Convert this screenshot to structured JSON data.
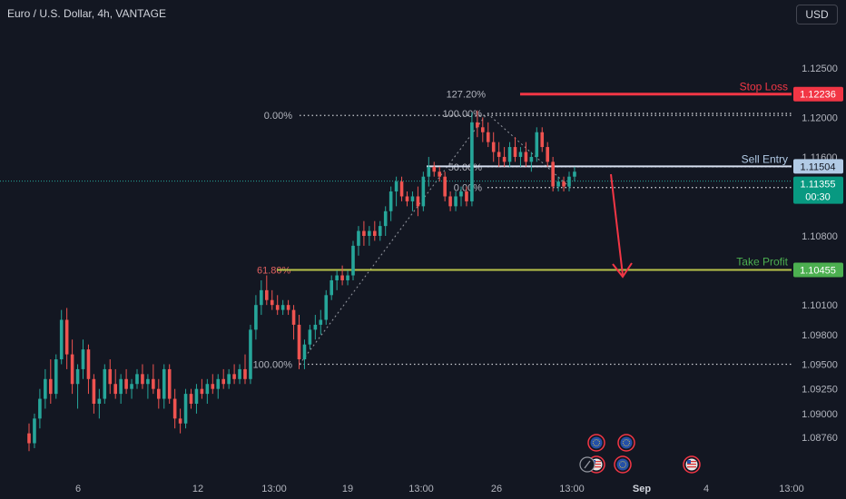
{
  "header": {
    "title": "Euro / U.S. Dollar, 4h, VANTAGE",
    "currency_label": "USD"
  },
  "colors": {
    "background": "#131722",
    "up": "#26a69a",
    "down": "#ef5350",
    "stop": "#f23645",
    "take_profit": "#4caf50",
    "entry_label_bg": "#b2cbe6",
    "current_price_bg": "#089981",
    "fib_line": "#9598a1"
  },
  "chart_data": {
    "type": "candlestick",
    "symbol": "EURUSD",
    "timeframe": "4h",
    "y_axis": {
      "labels": [
        "1.12500",
        "1.12000",
        "1.11600",
        "1.10800",
        "1.10100",
        "1.09800",
        "1.09500",
        "1.09250",
        "1.09000",
        "1.08760"
      ],
      "ylim": [
        1.0865,
        1.1285
      ]
    },
    "x_axis": {
      "labels": [
        "6",
        "12",
        "13:00",
        "19",
        "13:00",
        "26",
        "13:00",
        "Sep",
        "4",
        "13:00"
      ],
      "bold_label": "Sep"
    },
    "price_tags": [
      {
        "name": "stop-loss-tag",
        "value": "1.12236",
        "kind": "stop"
      },
      {
        "name": "sell-entry-tag",
        "value": "1.11504",
        "kind": "entry"
      },
      {
        "name": "current-price-tag",
        "value": "1.11355",
        "countdown": "00:30",
        "kind": "current"
      },
      {
        "name": "take-profit-tag",
        "value": "1.10455",
        "kind": "tp"
      }
    ],
    "annotations": [
      {
        "text": "Stop Loss",
        "kind": "stop"
      },
      {
        "text": "Sell Entry",
        "kind": "entry"
      },
      {
        "text": "Take Profit",
        "kind": "tp"
      }
    ],
    "fib_levels": [
      {
        "label": "0.00%",
        "value": 1.1202
      },
      {
        "label": "100.00%",
        "value": 1.095
      },
      {
        "label": "61.80%",
        "value": 1.10455
      },
      {
        "label": "127.20%",
        "value": 1.1224
      },
      {
        "label": "100.00%",
        "value": 1.1204
      },
      {
        "label": "50.00%",
        "value": 1.115
      },
      {
        "label": "0.00%",
        "value": 1.1129
      }
    ],
    "events": [
      {
        "icon": "eu-flag-icon"
      },
      {
        "icon": "eu-flag-icon"
      },
      {
        "icon": "eu-flag-icon"
      },
      {
        "icon": "us-flag-icon"
      },
      {
        "icon": "us-flag-icon"
      }
    ],
    "candles": [
      [
        1.088,
        1.089,
        1.0862,
        1.087
      ],
      [
        1.087,
        1.09,
        1.0865,
        1.0895
      ],
      [
        1.0895,
        1.0925,
        1.0885,
        1.0915
      ],
      [
        1.0915,
        1.0945,
        1.0905,
        1.0935
      ],
      [
        1.0935,
        1.0955,
        1.091,
        1.092
      ],
      [
        1.092,
        1.096,
        1.0915,
        1.0955
      ],
      [
        1.0955,
        1.1005,
        1.095,
        1.0995
      ],
      [
        1.0995,
        1.1007,
        1.0945,
        1.096
      ],
      [
        1.096,
        1.0975,
        1.092,
        1.093
      ],
      [
        1.093,
        1.095,
        1.0905,
        1.0945
      ],
      [
        1.0945,
        1.0975,
        1.0935,
        1.0965
      ],
      [
        1.0965,
        1.097,
        1.092,
        1.0935
      ],
      [
        1.0935,
        1.094,
        1.09,
        1.091
      ],
      [
        1.091,
        1.0925,
        1.0895,
        1.0915
      ],
      [
        1.0915,
        1.095,
        1.091,
        1.0945
      ],
      [
        1.0945,
        1.0955,
        1.092,
        1.093
      ],
      [
        1.093,
        1.0945,
        1.0915,
        1.092
      ],
      [
        1.092,
        1.094,
        1.091,
        1.0935
      ],
      [
        1.0935,
        1.0945,
        1.092,
        1.0925
      ],
      [
        1.0925,
        1.0935,
        1.0915,
        1.093
      ],
      [
        1.093,
        1.0945,
        1.0925,
        1.094
      ],
      [
        1.094,
        1.095,
        1.0925,
        1.093
      ],
      [
        1.093,
        1.094,
        1.0915,
        1.0935
      ],
      [
        1.0935,
        1.095,
        1.092,
        1.0925
      ],
      [
        1.0925,
        1.0935,
        1.0905,
        1.0915
      ],
      [
        1.0915,
        1.095,
        1.0905,
        1.0945
      ],
      [
        1.0945,
        1.095,
        1.091,
        1.0915
      ],
      [
        1.0915,
        1.0925,
        1.0885,
        1.0895
      ],
      [
        1.0895,
        1.0905,
        1.088,
        1.089
      ],
      [
        1.089,
        1.0925,
        1.0885,
        1.092
      ],
      [
        1.092,
        1.0925,
        1.0905,
        1.091
      ],
      [
        1.091,
        1.093,
        1.09,
        1.0925
      ],
      [
        1.0925,
        1.0935,
        1.0915,
        1.092
      ],
      [
        1.092,
        1.0935,
        1.091,
        1.093
      ],
      [
        1.093,
        1.094,
        1.092,
        1.0925
      ],
      [
        1.0925,
        1.094,
        1.0915,
        1.0935
      ],
      [
        1.0935,
        1.0945,
        1.0925,
        1.093
      ],
      [
        1.093,
        1.0945,
        1.0925,
        1.094
      ],
      [
        1.094,
        1.095,
        1.093,
        1.0935
      ],
      [
        1.0935,
        1.095,
        1.093,
        1.0945
      ],
      [
        1.0945,
        1.096,
        1.093,
        1.0935
      ],
      [
        1.0935,
        1.099,
        1.093,
        1.0985
      ],
      [
        1.0985,
        1.102,
        1.0975,
        1.101
      ],
      [
        1.101,
        1.1035,
        1.1,
        1.1025
      ],
      [
        1.1025,
        1.104,
        1.101,
        1.1015
      ],
      [
        1.1015,
        1.1025,
        1.1005,
        1.101
      ],
      [
        1.101,
        1.102,
        1.1,
        1.1005
      ],
      [
        1.1005,
        1.1015,
        1.1,
        1.101
      ],
      [
        1.101,
        1.1015,
        1.1,
        1.1005
      ],
      [
        1.1005,
        1.101,
        1.0975,
        1.099
      ],
      [
        1.099,
        1.1,
        1.0945,
        1.0955
      ],
      [
        1.0955,
        1.0975,
        1.0945,
        1.097
      ],
      [
        1.097,
        1.099,
        1.0965,
        1.0985
      ],
      [
        1.0985,
        1.1,
        1.0975,
        1.099
      ],
      [
        1.099,
        1.1005,
        1.098,
        1.0995
      ],
      [
        1.0995,
        1.1025,
        1.099,
        1.102
      ],
      [
        1.102,
        1.104,
        1.1015,
        1.1035
      ],
      [
        1.1035,
        1.1045,
        1.1025,
        1.104
      ],
      [
        1.104,
        1.105,
        1.103,
        1.1035
      ],
      [
        1.1035,
        1.1045,
        1.103,
        1.104
      ],
      [
        1.104,
        1.1075,
        1.1035,
        1.107
      ],
      [
        1.107,
        1.109,
        1.106,
        1.1085
      ],
      [
        1.1085,
        1.1095,
        1.107,
        1.108
      ],
      [
        1.108,
        1.109,
        1.107,
        1.1085
      ],
      [
        1.1085,
        1.1095,
        1.1075,
        1.108
      ],
      [
        1.108,
        1.1095,
        1.1075,
        1.109
      ],
      [
        1.109,
        1.111,
        1.108,
        1.1105
      ],
      [
        1.1105,
        1.113,
        1.1095,
        1.1125
      ],
      [
        1.1125,
        1.114,
        1.111,
        1.1135
      ],
      [
        1.1135,
        1.114,
        1.1115,
        1.112
      ],
      [
        1.112,
        1.1125,
        1.111,
        1.1115
      ],
      [
        1.1115,
        1.1125,
        1.1105,
        1.112
      ],
      [
        1.112,
        1.113,
        1.11,
        1.111
      ],
      [
        1.111,
        1.1145,
        1.1105,
        1.114
      ],
      [
        1.114,
        1.116,
        1.113,
        1.115
      ],
      [
        1.115,
        1.1155,
        1.114,
        1.1145
      ],
      [
        1.1145,
        1.115,
        1.1135,
        1.114
      ],
      [
        1.114,
        1.1145,
        1.1115,
        1.112
      ],
      [
        1.112,
        1.1125,
        1.1105,
        1.111
      ],
      [
        1.111,
        1.1125,
        1.1105,
        1.112
      ],
      [
        1.112,
        1.113,
        1.111,
        1.1125
      ],
      [
        1.1125,
        1.113,
        1.111,
        1.1115
      ],
      [
        1.1115,
        1.1205,
        1.111,
        1.1195
      ],
      [
        1.1195,
        1.1207,
        1.118,
        1.119
      ],
      [
        1.119,
        1.12,
        1.1175,
        1.1185
      ],
      [
        1.1185,
        1.1195,
        1.117,
        1.1175
      ],
      [
        1.1175,
        1.1185,
        1.1155,
        1.1165
      ],
      [
        1.1165,
        1.1175,
        1.115,
        1.116
      ],
      [
        1.116,
        1.117,
        1.115,
        1.1155
      ],
      [
        1.1155,
        1.1175,
        1.115,
        1.117
      ],
      [
        1.117,
        1.118,
        1.1155,
        1.116
      ],
      [
        1.116,
        1.117,
        1.115,
        1.1165
      ],
      [
        1.1165,
        1.1175,
        1.115,
        1.1155
      ],
      [
        1.1155,
        1.1165,
        1.1145,
        1.116
      ],
      [
        1.116,
        1.119,
        1.1155,
        1.1185
      ],
      [
        1.1185,
        1.119,
        1.1165,
        1.117
      ],
      [
        1.117,
        1.1175,
        1.115,
        1.1155
      ],
      [
        1.1155,
        1.116,
        1.1125,
        1.113
      ],
      [
        1.113,
        1.114,
        1.1125,
        1.1135
      ],
      [
        1.1135,
        1.114,
        1.1125,
        1.113
      ],
      [
        1.113,
        1.1145,
        1.1125,
        1.114
      ],
      [
        1.114,
        1.115,
        1.1135,
        1.1145
      ]
    ]
  }
}
